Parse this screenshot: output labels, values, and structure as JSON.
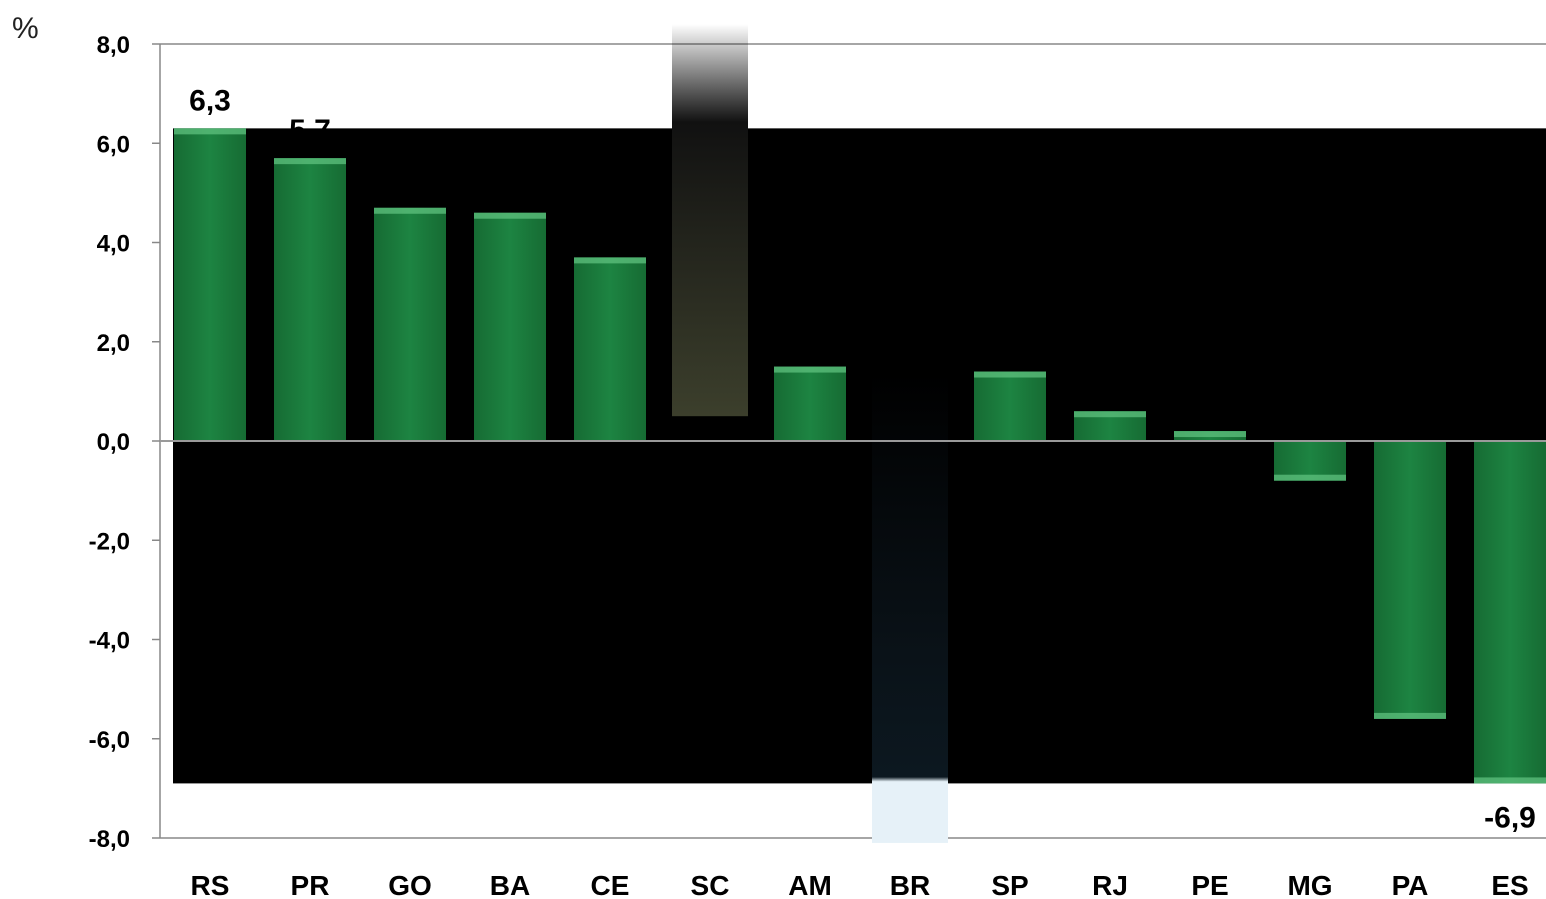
{
  "chart_data": {
    "type": "bar",
    "unit_label": "%",
    "categories": [
      "RS",
      "PR",
      "GO",
      "BA",
      "CE",
      "SC",
      "AM",
      "BR",
      "SP",
      "RJ",
      "PE",
      "MG",
      "PA",
      "ES"
    ],
    "values": [
      6.3,
      5.7,
      4.7,
      4.6,
      3.7,
      0.5,
      1.5,
      -8.1,
      1.4,
      0.6,
      0.2,
      -0.8,
      -5.6,
      -6.9
    ],
    "y_ticks": [
      "8,0",
      "6,0",
      "4,0",
      "2,0",
      "0,0",
      "-2,0",
      "-4,0",
      "-6,0",
      "-8,0"
    ],
    "ylim": [
      -8,
      8
    ],
    "data_labels": [
      {
        "category": "RS",
        "text": "6,3"
      },
      {
        "category": "PR",
        "text": "5,7"
      },
      {
        "category": "ES",
        "text": "-6,9"
      }
    ],
    "grid": false,
    "colors": {
      "bar": "#1b7a3c",
      "bar_highlight": "#5fc27f",
      "plot_area": "#000000",
      "sc_bar_top": "#000000",
      "sc_bar_bottom": "#3c3f2c",
      "br_bar_top": "#000000",
      "br_bar_bottom": "#e6f1f8",
      "axis": "#888888"
    }
  }
}
